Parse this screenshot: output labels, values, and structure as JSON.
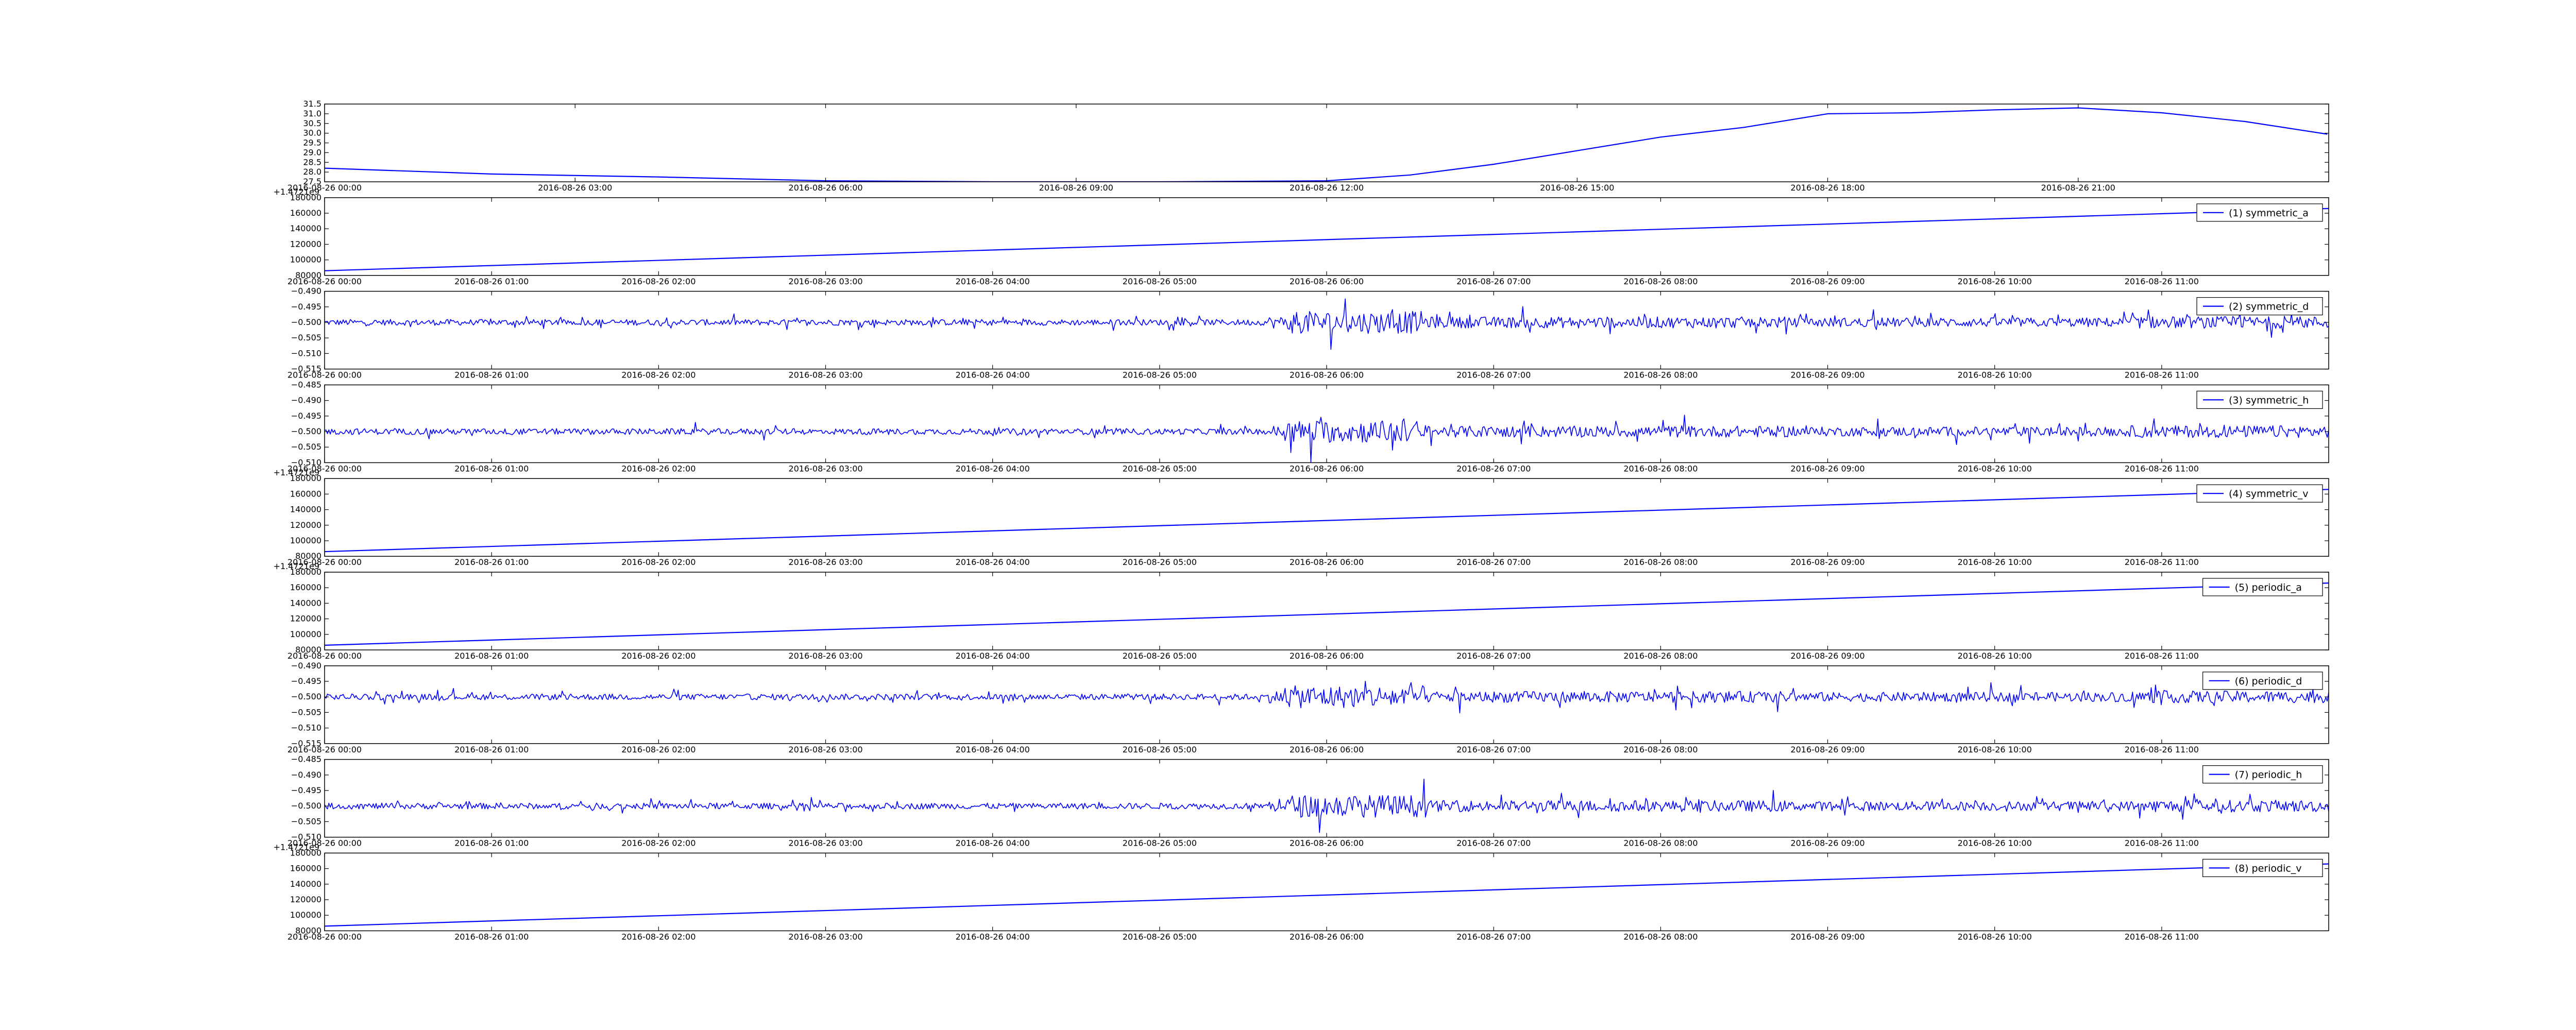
{
  "chart_data": [
    {
      "type": "line",
      "series": [
        {
          "name": "",
          "color": "#0000ff",
          "x": [
            "2016-08-26 00:00",
            "2016-08-26 02:00",
            "2016-08-26 04:00",
            "2016-08-26 06:00",
            "2016-08-26 08:00",
            "2016-08-26 10:00",
            "2016-08-26 12:00",
            "2016-08-26 13:00",
            "2016-08-26 14:00",
            "2016-08-26 15:00",
            "2016-08-26 16:00",
            "2016-08-26 17:00",
            "2016-08-26 18:00",
            "2016-08-26 19:00",
            "2016-08-26 20:00",
            "2016-08-26 21:00",
            "2016-08-26 22:00",
            "2016-08-26 23:00",
            "2016-08-26 23:59"
          ],
          "y": [
            28.2,
            27.9,
            27.75,
            27.55,
            27.5,
            27.5,
            27.55,
            27.85,
            28.4,
            29.1,
            29.8,
            30.3,
            31.0,
            31.05,
            31.2,
            31.3,
            31.05,
            30.6,
            29.95
          ]
        }
      ],
      "x_ticks": [
        "2016-08-26 00:00",
        "2016-08-26 03:00",
        "2016-08-26 06:00",
        "2016-08-26 09:00",
        "2016-08-26 12:00",
        "2016-08-26 15:00",
        "2016-08-26 18:00",
        "2016-08-26 21:00"
      ],
      "xlim": [
        "2016-08-26 00:00",
        "2016-08-27 00:00"
      ],
      "ylim": [
        27.5,
        31.5
      ],
      "y_ticks": [
        "27.5",
        "28.0",
        "28.5",
        "29.0",
        "29.5",
        "30.0",
        "30.5",
        "31.0",
        "31.5"
      ],
      "y_tick_values": [
        27.5,
        28.0,
        28.5,
        29.0,
        29.5,
        30.0,
        30.5,
        31.0,
        31.5
      ],
      "offset_text": "",
      "legend": null,
      "grid": false
    },
    {
      "type": "line",
      "series": [
        {
          "name": "(1) symmetric_a",
          "color": "#0000ff",
          "x": [
            "2016-08-26 00:00",
            "2016-08-26 12:00"
          ],
          "y": [
            86000,
            166000
          ]
        }
      ],
      "x_ticks": [
        "2016-08-26 00:00",
        "2016-08-26 01:00",
        "2016-08-26 02:00",
        "2016-08-26 03:00",
        "2016-08-26 04:00",
        "2016-08-26 05:00",
        "2016-08-26 06:00",
        "2016-08-26 07:00",
        "2016-08-26 08:00",
        "2016-08-26 09:00",
        "2016-08-26 10:00",
        "2016-08-26 11:00"
      ],
      "xlim": [
        "2016-08-26 00:00",
        "2016-08-26 12:00"
      ],
      "ylim": [
        80000,
        180000
      ],
      "y_ticks": [
        "80000",
        "100000",
        "120000",
        "140000",
        "160000",
        "180000"
      ],
      "y_tick_values": [
        80000,
        100000,
        120000,
        140000,
        160000,
        180000
      ],
      "offset_text": "+1.4721e9",
      "legend": "upper right",
      "grid": false
    },
    {
      "type": "line",
      "series": [
        {
          "name": "(2) symmetric_d",
          "color": "#0000ff",
          "noise": true,
          "center": -0.5
        }
      ],
      "x_ticks": [
        "2016-08-26 00:00",
        "2016-08-26 01:00",
        "2016-08-26 02:00",
        "2016-08-26 03:00",
        "2016-08-26 04:00",
        "2016-08-26 05:00",
        "2016-08-26 06:00",
        "2016-08-26 07:00",
        "2016-08-26 08:00",
        "2016-08-26 09:00",
        "2016-08-26 10:00",
        "2016-08-26 11:00"
      ],
      "xlim": [
        "2016-08-26 00:00",
        "2016-08-26 12:00"
      ],
      "ylim": [
        -0.515,
        -0.49
      ],
      "y_ticks": [
        "−0.515",
        "−0.510",
        "−0.505",
        "−0.500",
        "−0.495",
        "−0.490"
      ],
      "y_tick_values": [
        -0.515,
        -0.51,
        -0.505,
        -0.5,
        -0.495,
        -0.49
      ],
      "offset_text": "",
      "legend": "upper right",
      "grid": false
    },
    {
      "type": "line",
      "series": [
        {
          "name": "(3) symmetric_h",
          "color": "#0000ff",
          "noise": true,
          "center": -0.5
        }
      ],
      "x_ticks": [
        "2016-08-26 00:00",
        "2016-08-26 01:00",
        "2016-08-26 02:00",
        "2016-08-26 03:00",
        "2016-08-26 04:00",
        "2016-08-26 05:00",
        "2016-08-26 06:00",
        "2016-08-26 07:00",
        "2016-08-26 08:00",
        "2016-08-26 09:00",
        "2016-08-26 10:00",
        "2016-08-26 11:00"
      ],
      "xlim": [
        "2016-08-26 00:00",
        "2016-08-26 12:00"
      ],
      "ylim": [
        -0.51,
        -0.485
      ],
      "y_ticks": [
        "−0.510",
        "−0.505",
        "−0.500",
        "−0.495",
        "−0.490",
        "−0.485"
      ],
      "y_tick_values": [
        -0.51,
        -0.505,
        -0.5,
        -0.495,
        -0.49,
        -0.485
      ],
      "offset_text": "",
      "legend": "upper right",
      "grid": false
    },
    {
      "type": "line",
      "series": [
        {
          "name": "(4) symmetric_v",
          "color": "#0000ff",
          "x": [
            "2016-08-26 00:00",
            "2016-08-26 12:00"
          ],
          "y": [
            86000,
            166000
          ]
        }
      ],
      "x_ticks": [
        "2016-08-26 00:00",
        "2016-08-26 01:00",
        "2016-08-26 02:00",
        "2016-08-26 03:00",
        "2016-08-26 04:00",
        "2016-08-26 05:00",
        "2016-08-26 06:00",
        "2016-08-26 07:00",
        "2016-08-26 08:00",
        "2016-08-26 09:00",
        "2016-08-26 10:00",
        "2016-08-26 11:00"
      ],
      "xlim": [
        "2016-08-26 00:00",
        "2016-08-26 12:00"
      ],
      "ylim": [
        80000,
        180000
      ],
      "y_ticks": [
        "80000",
        "100000",
        "120000",
        "140000",
        "160000",
        "180000"
      ],
      "y_tick_values": [
        80000,
        100000,
        120000,
        140000,
        160000,
        180000
      ],
      "offset_text": "+1.4721e9",
      "legend": "upper right",
      "grid": false
    },
    {
      "type": "line",
      "series": [
        {
          "name": "(5) periodic_a",
          "color": "#0000ff",
          "x": [
            "2016-08-26 00:00",
            "2016-08-26 12:00"
          ],
          "y": [
            86000,
            166000
          ]
        }
      ],
      "x_ticks": [
        "2016-08-26 00:00",
        "2016-08-26 01:00",
        "2016-08-26 02:00",
        "2016-08-26 03:00",
        "2016-08-26 04:00",
        "2016-08-26 05:00",
        "2016-08-26 06:00",
        "2016-08-26 07:00",
        "2016-08-26 08:00",
        "2016-08-26 09:00",
        "2016-08-26 10:00",
        "2016-08-26 11:00"
      ],
      "xlim": [
        "2016-08-26 00:00",
        "2016-08-26 12:00"
      ],
      "ylim": [
        80000,
        180000
      ],
      "y_ticks": [
        "80000",
        "100000",
        "120000",
        "140000",
        "160000",
        "180000"
      ],
      "y_tick_values": [
        80000,
        100000,
        120000,
        140000,
        160000,
        180000
      ],
      "offset_text": "+1.4721e9",
      "legend": "upper right",
      "grid": false
    },
    {
      "type": "line",
      "series": [
        {
          "name": "(6) periodic_d",
          "color": "#0000ff",
          "noise": true,
          "center": -0.5
        }
      ],
      "x_ticks": [
        "2016-08-26 00:00",
        "2016-08-26 01:00",
        "2016-08-26 02:00",
        "2016-08-26 03:00",
        "2016-08-26 04:00",
        "2016-08-26 05:00",
        "2016-08-26 06:00",
        "2016-08-26 07:00",
        "2016-08-26 08:00",
        "2016-08-26 09:00",
        "2016-08-26 10:00",
        "2016-08-26 11:00"
      ],
      "xlim": [
        "2016-08-26 00:00",
        "2016-08-26 12:00"
      ],
      "ylim": [
        -0.515,
        -0.49
      ],
      "y_ticks": [
        "−0.515",
        "−0.510",
        "−0.505",
        "−0.500",
        "−0.495",
        "−0.490"
      ],
      "y_tick_values": [
        -0.515,
        -0.51,
        -0.505,
        -0.5,
        -0.495,
        -0.49
      ],
      "offset_text": "",
      "legend": "upper right",
      "grid": false
    },
    {
      "type": "line",
      "series": [
        {
          "name": "(7) periodic_h",
          "color": "#0000ff",
          "noise": true,
          "center": -0.5
        }
      ],
      "x_ticks": [
        "2016-08-26 00:00",
        "2016-08-26 01:00",
        "2016-08-26 02:00",
        "2016-08-26 03:00",
        "2016-08-26 04:00",
        "2016-08-26 05:00",
        "2016-08-26 06:00",
        "2016-08-26 07:00",
        "2016-08-26 08:00",
        "2016-08-26 09:00",
        "2016-08-26 10:00",
        "2016-08-26 11:00"
      ],
      "xlim": [
        "2016-08-26 00:00",
        "2016-08-26 12:00"
      ],
      "ylim": [
        -0.51,
        -0.485
      ],
      "y_ticks": [
        "−0.510",
        "−0.505",
        "−0.500",
        "−0.495",
        "−0.490",
        "−0.485"
      ],
      "y_tick_values": [
        -0.51,
        -0.505,
        -0.5,
        -0.495,
        -0.49,
        -0.485
      ],
      "offset_text": "",
      "legend": "upper right",
      "grid": false
    },
    {
      "type": "line",
      "series": [
        {
          "name": "(8) periodic_v",
          "color": "#0000ff",
          "x": [
            "2016-08-26 00:00",
            "2016-08-26 12:00"
          ],
          "y": [
            86000,
            166000
          ]
        }
      ],
      "x_ticks": [
        "2016-08-26 00:00",
        "2016-08-26 01:00",
        "2016-08-26 02:00",
        "2016-08-26 03:00",
        "2016-08-26 04:00",
        "2016-08-26 05:00",
        "2016-08-26 06:00",
        "2016-08-26 07:00",
        "2016-08-26 08:00",
        "2016-08-26 09:00",
        "2016-08-26 10:00",
        "2016-08-26 11:00"
      ],
      "xlim": [
        "2016-08-26 00:00",
        "2016-08-26 12:00"
      ],
      "ylim": [
        80000,
        180000
      ],
      "y_ticks": [
        "80000",
        "100000",
        "120000",
        "140000",
        "160000",
        "180000"
      ],
      "y_tick_values": [
        80000,
        100000,
        120000,
        140000,
        160000,
        180000
      ],
      "offset_text": "+1.4721e9",
      "legend": "upper right",
      "grid": false
    }
  ]
}
